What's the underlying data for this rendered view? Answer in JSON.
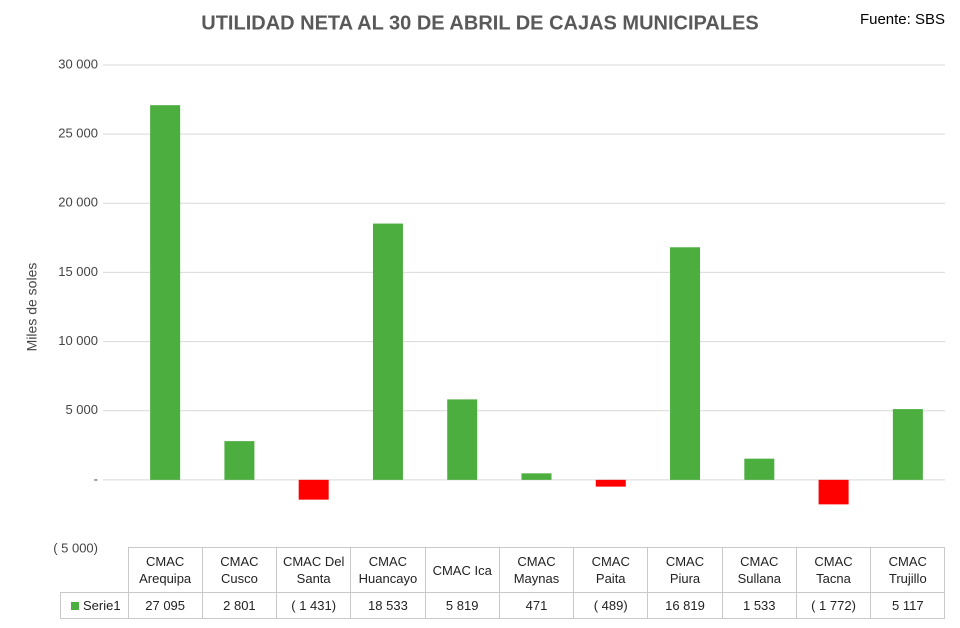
{
  "chart_data": {
    "type": "bar",
    "title": "UTILIDAD NETA AL 30 DE ABRIL DE CAJAS MUNICIPALES",
    "source": "Fuente: SBS",
    "y_label": "Miles de soles",
    "categories": [
      "CMAC\nArequipa",
      "CMAC\nCusco",
      "CMAC Del\nSanta",
      "CMAC\nHuancayo",
      "CMAC Ica",
      "CMAC\nMaynas",
      "CMAC\nPaita",
      "CMAC\nPiura",
      "CMAC\nSullana",
      "CMAC\nTacna",
      "CMAC\nTrujillo"
    ],
    "series": [
      {
        "name": "Serie1",
        "color": "#4cae3f",
        "negative_color": "#ff0000",
        "values": [
          27095,
          2801,
          -1431,
          18533,
          5819,
          471,
          -489,
          16819,
          1533,
          -1772,
          5117
        ],
        "value_labels": [
          "27 095",
          "2 801",
          "( 1 431)",
          "18 533",
          "5 819",
          "471",
          "( 489)",
          "16 819",
          "1 533",
          "( 1 772)",
          "5 117"
        ]
      }
    ],
    "ylim": [
      -5000,
      30000
    ],
    "yticks": [
      {
        "value": -5000,
        "label": "( 5 000)"
      },
      {
        "value": 0,
        "label": "-"
      },
      {
        "value": 5000,
        "label": "5 000"
      },
      {
        "value": 10000,
        "label": "10 000"
      },
      {
        "value": 15000,
        "label": "15 000"
      },
      {
        "value": 20000,
        "label": "20 000"
      },
      {
        "value": 25000,
        "label": "25 000"
      },
      {
        "value": 30000,
        "label": "30 000"
      }
    ],
    "grid": true
  }
}
